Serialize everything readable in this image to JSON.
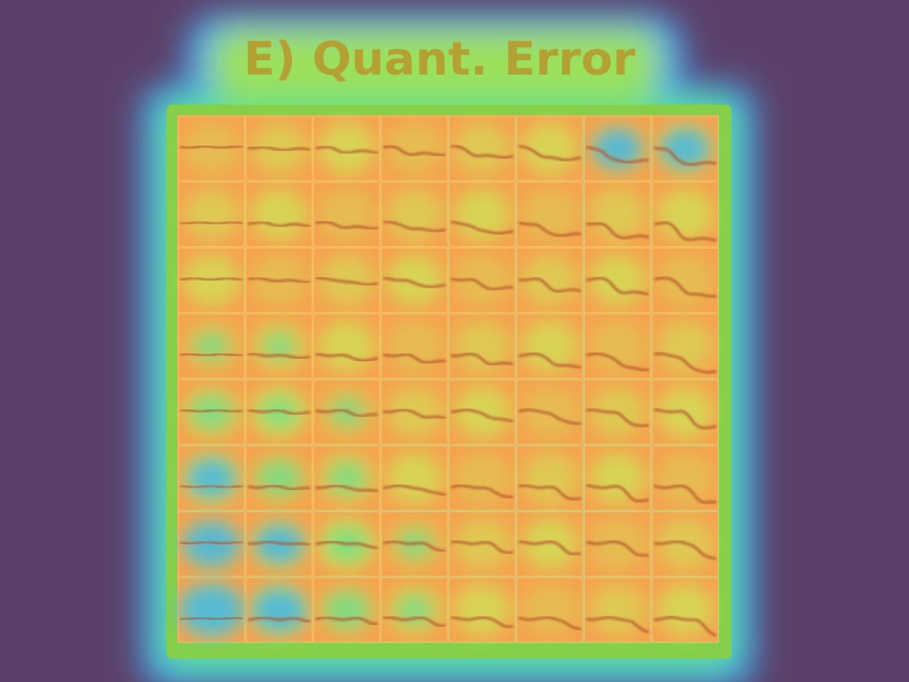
{
  "panel": {
    "title": "E) Quant. Error"
  }
}
